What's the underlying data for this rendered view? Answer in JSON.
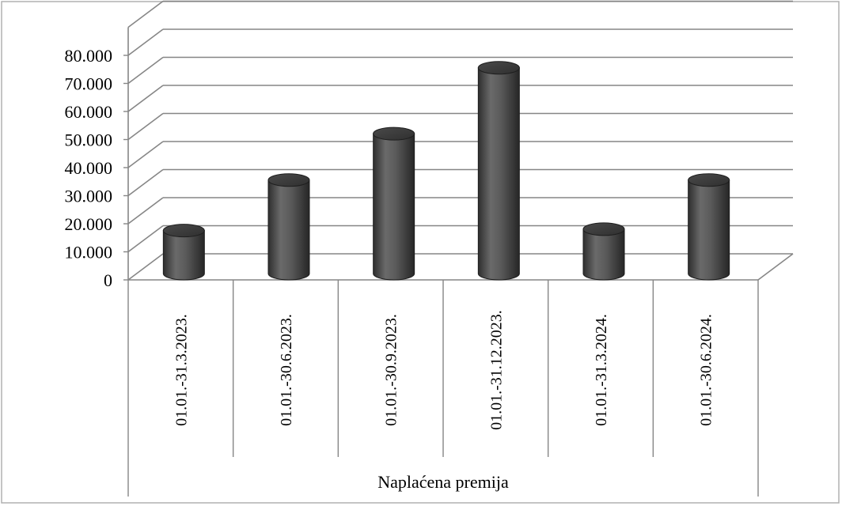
{
  "chart_data": {
    "type": "bar",
    "style": "3d-cylinder",
    "categories": [
      "01.01.-31.3.2023.",
      "01.01.-30.6.2023.",
      "01.01.-30.9.2023.",
      "01.01.-31.12.2023.",
      "01.01.-31.3.2024.",
      "01.01.-30.6.2024."
    ],
    "values": [
      17000,
      35000,
      51500,
      75000,
      17500,
      35000
    ],
    "title": "",
    "xlabel": "Naplaćena premija",
    "ylabel": "",
    "ylim": [
      0,
      80000
    ],
    "ytick_labels": [
      "0",
      "10.000",
      "20.000",
      "30.000",
      "40.000",
      "50.000",
      "60.000",
      "70.000",
      "80.000"
    ],
    "grid": true,
    "legend": "none",
    "colors": {
      "bar": "#595959",
      "grid": "#868686",
      "border": "#b0b0b0"
    }
  }
}
